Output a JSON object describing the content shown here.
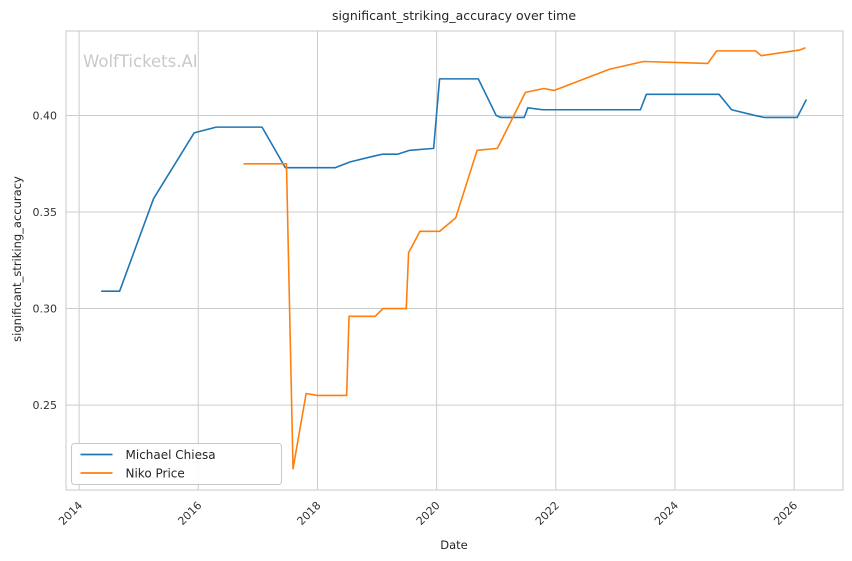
{
  "watermark": "WolfTickets.AI",
  "chart_data": {
    "type": "line",
    "title": "significant_striking_accuracy over time",
    "xlabel": "Date",
    "ylabel": "significant_striking_accuracy",
    "x_ticks": [
      2014,
      2016,
      2018,
      2020,
      2022,
      2024,
      2026
    ],
    "x_tick_labels": [
      "2014",
      "2016",
      "2018",
      "2020",
      "2022",
      "2024",
      "2026"
    ],
    "y_ticks": [
      0.25,
      0.3,
      0.35,
      0.4
    ],
    "y_tick_labels": [
      "0.25",
      "0.30",
      "0.35",
      "0.40"
    ],
    "xlim": [
      2013.78,
      2026.82
    ],
    "ylim": [
      0.206,
      0.4438
    ],
    "grid": true,
    "legend_position": "lower left",
    "colors": {
      "background": "#ffffff",
      "grid": "#cccccc",
      "spine": "#c8c8c8",
      "text": "#262626",
      "watermark": "#c9c9c9"
    },
    "series": [
      {
        "name": "Michael Chiesa",
        "color": "#1f77b4",
        "points": [
          [
            2014.38,
            0.309
          ],
          [
            2014.68,
            0.309
          ],
          [
            2015.25,
            0.357
          ],
          [
            2015.93,
            0.391
          ],
          [
            2016.3,
            0.394
          ],
          [
            2017.07,
            0.394
          ],
          [
            2017.46,
            0.373
          ],
          [
            2018.3,
            0.373
          ],
          [
            2018.55,
            0.376
          ],
          [
            2018.95,
            0.379
          ],
          [
            2019.1,
            0.38
          ],
          [
            2019.35,
            0.38
          ],
          [
            2019.55,
            0.382
          ],
          [
            2019.95,
            0.383
          ],
          [
            2020.05,
            0.419
          ],
          [
            2020.7,
            0.419
          ],
          [
            2021.0,
            0.4
          ],
          [
            2021.08,
            0.399
          ],
          [
            2021.47,
            0.399
          ],
          [
            2021.53,
            0.404
          ],
          [
            2021.78,
            0.403
          ],
          [
            2023.42,
            0.403
          ],
          [
            2023.52,
            0.411
          ],
          [
            2024.74,
            0.411
          ],
          [
            2024.95,
            0.403
          ],
          [
            2025.35,
            0.4
          ],
          [
            2025.5,
            0.399
          ],
          [
            2026.05,
            0.399
          ],
          [
            2026.2,
            0.408
          ]
        ]
      },
      {
        "name": "Niko Price",
        "color": "#ff7f0e",
        "points": [
          [
            2016.77,
            0.375
          ],
          [
            2017.48,
            0.375
          ],
          [
            2017.59,
            0.217
          ],
          [
            2017.81,
            0.256
          ],
          [
            2018.0,
            0.255
          ],
          [
            2018.49,
            0.255
          ],
          [
            2018.53,
            0.296
          ],
          [
            2018.97,
            0.296
          ],
          [
            2019.1,
            0.3
          ],
          [
            2019.49,
            0.3
          ],
          [
            2019.53,
            0.329
          ],
          [
            2019.72,
            0.34
          ],
          [
            2020.05,
            0.34
          ],
          [
            2020.32,
            0.347
          ],
          [
            2020.68,
            0.382
          ],
          [
            2021.02,
            0.383
          ],
          [
            2021.49,
            0.412
          ],
          [
            2021.8,
            0.414
          ],
          [
            2021.97,
            0.413
          ],
          [
            2022.9,
            0.424
          ],
          [
            2023.47,
            0.428
          ],
          [
            2024.55,
            0.427
          ],
          [
            2024.7,
            0.4335
          ],
          [
            2025.35,
            0.4335
          ],
          [
            2025.45,
            0.431
          ],
          [
            2026.1,
            0.434
          ],
          [
            2026.18,
            0.435
          ]
        ]
      }
    ]
  }
}
